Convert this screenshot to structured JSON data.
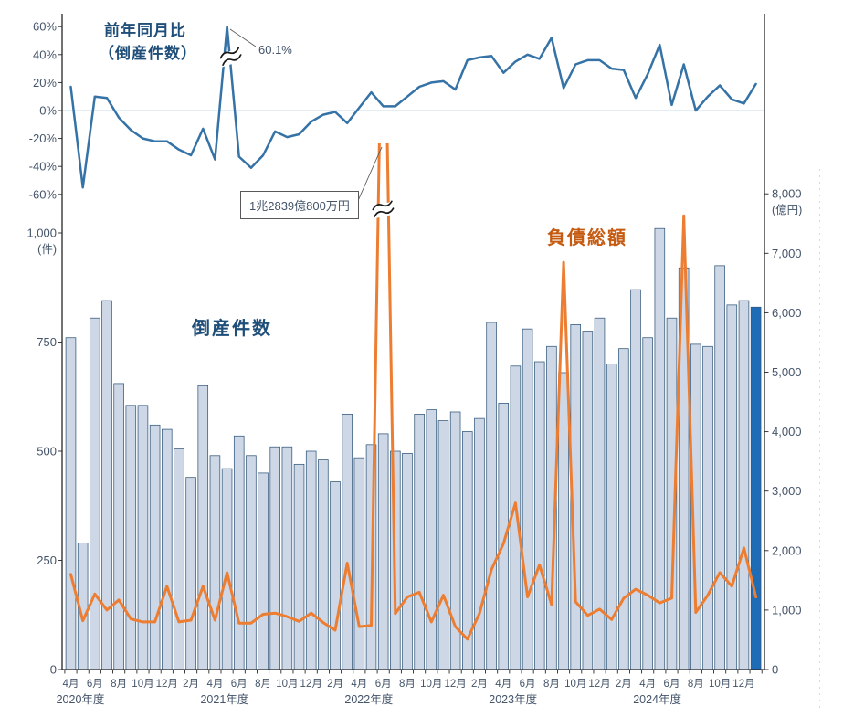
{
  "titles": {
    "yoy_line1": "前年同月比",
    "yoy_line2": "（倒産件数）",
    "bars": "倒産件数",
    "liabilities": "負債総額"
  },
  "annotations": {
    "yoy_peak_label": "60.1%",
    "liabilities_peak_label": "1兆2839億800万円"
  },
  "axes": {
    "left_percent": {
      "labels": [
        "60%",
        "40%",
        "20%",
        "0%",
        "-20%",
        "-40%",
        "-60%"
      ],
      "values": [
        60,
        40,
        20,
        0,
        -20,
        -40,
        -60
      ]
    },
    "left_count": {
      "labels": [
        "1,000",
        "750",
        "500",
        "250",
        "0"
      ],
      "values": [
        1000,
        750,
        500,
        250,
        0
      ],
      "unit": "(件)"
    },
    "right_amount": {
      "labels": [
        "8,000",
        "7,000",
        "6,000",
        "5,000",
        "4,000",
        "3,000",
        "2,000",
        "1,000",
        "0"
      ],
      "values": [
        8000,
        7000,
        6000,
        5000,
        4000,
        3000,
        2000,
        1000,
        0
      ],
      "unit": "(億円)"
    },
    "fiscal_year_labels": [
      "2020年度",
      "2021年度",
      "2022年度",
      "2023年度",
      "2024年度"
    ],
    "month_label_suffix": "月"
  },
  "colors": {
    "bar_fill": "#cdd7e5",
    "bar_border": "#33587b",
    "bar_highlight": "#1e6cb5",
    "yoy_line": "#3572a6",
    "liabilities_line": "#ed7d31",
    "zero_gridline": "#dbe5f1",
    "axis": "#262626",
    "tick_text": "#44546a"
  },
  "chart_data": {
    "type": "combo",
    "description": "Monthly corporate bankruptcies in Japan, FY2020-FY2024: bars = bankruptcy counts (件, left axis), orange line = total liabilities (億円, right axis), blue line = year-over-year change of counts (%, top axis). Last month highlighted dark blue.",
    "x": [
      "2020-04",
      "2020-05",
      "2020-06",
      "2020-07",
      "2020-08",
      "2020-09",
      "2020-10",
      "2020-11",
      "2020-12",
      "2021-01",
      "2021-02",
      "2021-03",
      "2021-04",
      "2021-05",
      "2021-06",
      "2021-07",
      "2021-08",
      "2021-09",
      "2021-10",
      "2021-11",
      "2021-12",
      "2022-01",
      "2022-02",
      "2022-03",
      "2022-04",
      "2022-05",
      "2022-06",
      "2022-07",
      "2022-08",
      "2022-09",
      "2022-10",
      "2022-11",
      "2022-12",
      "2023-01",
      "2023-02",
      "2023-03",
      "2023-04",
      "2023-05",
      "2023-06",
      "2023-07",
      "2023-08",
      "2023-09",
      "2023-10",
      "2023-11",
      "2023-12",
      "2024-01",
      "2024-02",
      "2024-03",
      "2024-04",
      "2024-05",
      "2024-06",
      "2024-07",
      "2024-08",
      "2024-09",
      "2024-10",
      "2024-11",
      "2024-12",
      "2025-01"
    ],
    "series": [
      {
        "name": "倒産件数",
        "type": "bar",
        "axis": "left_count",
        "unit": "件",
        "ylim": [
          0,
          1000
        ],
        "values": [
          760,
          290,
          805,
          845,
          655,
          605,
          605,
          560,
          550,
          505,
          440,
          650,
          490,
          460,
          535,
          490,
          450,
          510,
          510,
          470,
          500,
          480,
          430,
          585,
          485,
          515,
          540,
          500,
          495,
          585,
          595,
          570,
          590,
          545,
          575,
          795,
          610,
          695,
          780,
          705,
          740,
          680,
          790,
          775,
          805,
          700,
          735,
          870,
          760,
          1010,
          805,
          920,
          745,
          740,
          925,
          835,
          845,
          830
        ]
      },
      {
        "name": "負債総額",
        "type": "line",
        "axis": "right_amount",
        "unit": "億円",
        "ylim": [
          0,
          8000
        ],
        "note": "2022-06 spike truncated with break mark; annotated 1兆2839億800万円 (=12,839億円)",
        "values": [
          1600,
          820,
          1270,
          1000,
          1170,
          850,
          800,
          800,
          1400,
          800,
          830,
          1400,
          830,
          1630,
          780,
          780,
          930,
          950,
          890,
          810,
          950,
          790,
          660,
          1790,
          720,
          740,
          12839,
          940,
          1220,
          1300,
          800,
          1250,
          720,
          510,
          940,
          1680,
          2120,
          2800,
          1220,
          1760,
          1090,
          6850,
          1140,
          910,
          1015,
          840,
          1200,
          1350,
          1250,
          1120,
          1200,
          7630,
          960,
          1250,
          1630,
          1400,
          2045,
          1220
        ]
      },
      {
        "name": "前年同月比（倒産件数）",
        "type": "line",
        "axis": "left_percent",
        "unit": "%",
        "ylim": [
          -60,
          60
        ],
        "note": "peak 2021-05 annotated 60.1%",
        "values": [
          17,
          -55,
          10,
          9,
          -5,
          -14,
          -20,
          -22,
          -22,
          -28,
          -32,
          -13,
          -35,
          60.1,
          -33,
          -41,
          -32,
          -15,
          -19,
          -17,
          -8,
          -3,
          -1,
          -9,
          2,
          13,
          3,
          3,
          10,
          17,
          20,
          21,
          15,
          36,
          38,
          39,
          27,
          35,
          40,
          37,
          52,
          16,
          33,
          36,
          36,
          30,
          29,
          9,
          26,
          47,
          4,
          33,
          0,
          10,
          18,
          8,
          5,
          19
        ]
      }
    ],
    "highlight_last_bar": true,
    "legend_position": "in-plot text labels",
    "grid": "0% line only (top chart)"
  }
}
